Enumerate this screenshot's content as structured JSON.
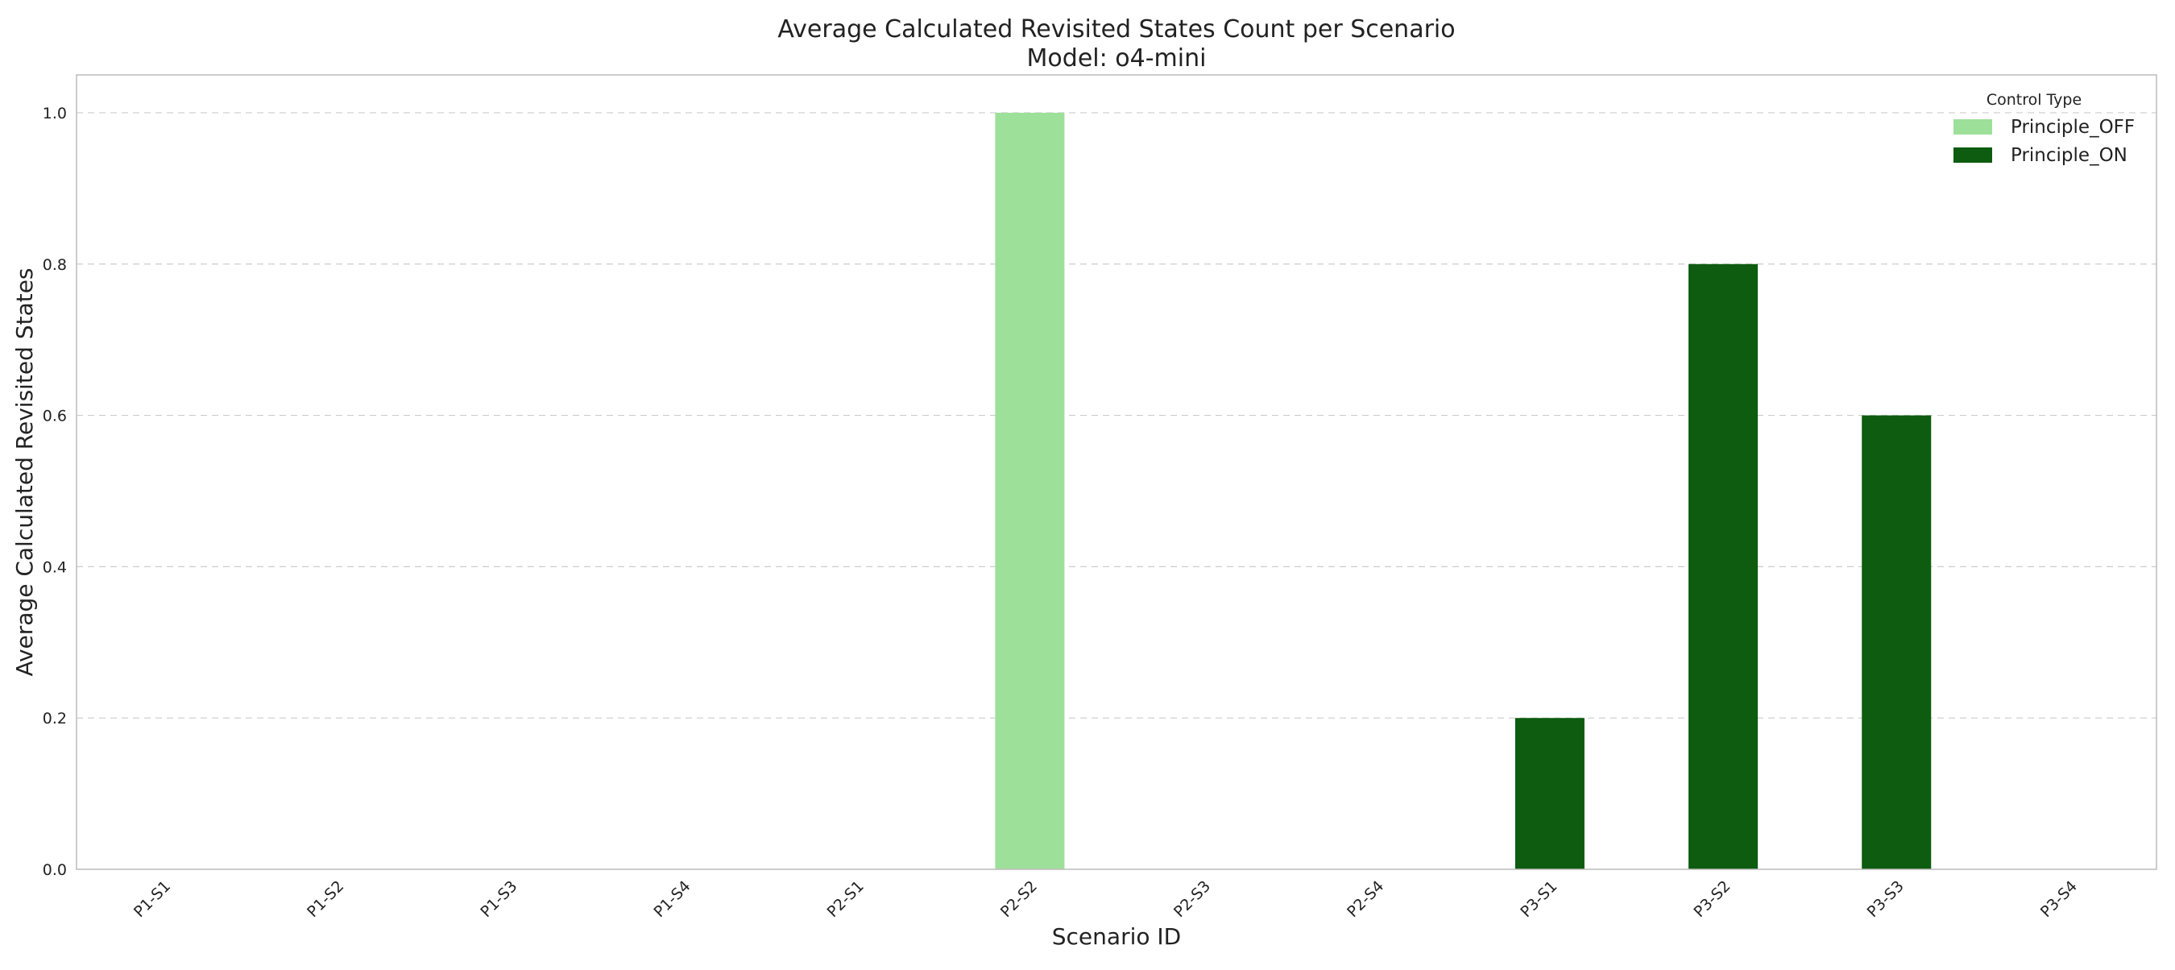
{
  "chart_data": {
    "type": "bar",
    "title": "Average Calculated Revisited States Count per Scenario",
    "subtitle": "Model: o4-mini",
    "xlabel": "Scenario ID",
    "ylabel": "Average Calculated Revisited States",
    "categories": [
      "P1-S1",
      "P1-S2",
      "P1-S3",
      "P1-S4",
      "P2-S1",
      "P2-S2",
      "P2-S3",
      "P2-S4",
      "P3-S1",
      "P3-S2",
      "P3-S3",
      "P3-S4"
    ],
    "series": [
      {
        "name": "Principle_OFF",
        "color": "#9de09a",
        "values": [
          0,
          0,
          0,
          0,
          0,
          1.0,
          0,
          0,
          0,
          0,
          0,
          0
        ]
      },
      {
        "name": "Principle_ON",
        "color": "#0d5c0f",
        "values": [
          0,
          0,
          0,
          0,
          0,
          0,
          0,
          0,
          0.2,
          0.8,
          0.6,
          0
        ]
      }
    ],
    "ylim": [
      0,
      1.05
    ],
    "yticks": [
      0.0,
      0.2,
      0.4,
      0.6,
      0.8,
      1.0
    ],
    "grid": true,
    "legend": {
      "title": "Control Type",
      "position": "top-right"
    }
  }
}
